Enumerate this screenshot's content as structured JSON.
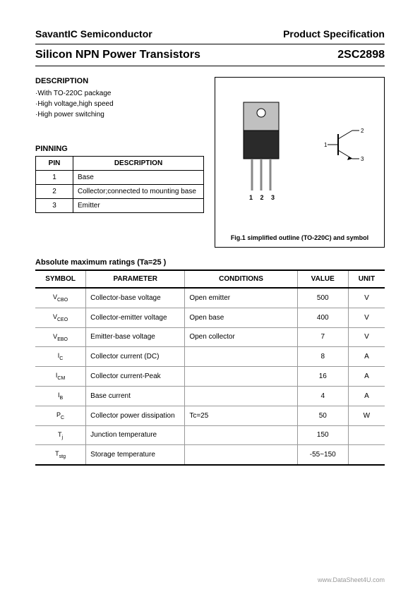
{
  "header": {
    "company": "SavantIC Semiconductor",
    "doc_type": "Product Specification"
  },
  "title": {
    "product_line": "Silicon NPN Power Transistors",
    "part_number": "2SC2898"
  },
  "description": {
    "heading": "DESCRIPTION",
    "items": [
      "·With TO-220C package",
      "·High voltage,high speed",
      "·High power switching"
    ]
  },
  "pinning": {
    "heading": "PINNING",
    "columns": [
      "PIN",
      "DESCRIPTION"
    ],
    "rows": [
      {
        "pin": "1",
        "desc": "Base"
      },
      {
        "pin": "2",
        "desc": "Collector;connected to mounting base"
      },
      {
        "pin": "3",
        "desc": "Emitter"
      }
    ]
  },
  "figure": {
    "caption": "Fig.1 simplified outline (TO-220C) and symbol",
    "pin_labels": "1 2 3",
    "symbol_pins": {
      "b": "1",
      "c": "2",
      "e": "3"
    }
  },
  "ratings": {
    "heading": "Absolute maximum ratings (Ta=25 )",
    "columns": [
      "SYMBOL",
      "PARAMETER",
      "CONDITIONS",
      "VALUE",
      "UNIT"
    ],
    "rows": [
      {
        "symbol": "V",
        "sub": "CBO",
        "param": "Collector-base voltage",
        "cond": "Open emitter",
        "value": "500",
        "unit": "V"
      },
      {
        "symbol": "V",
        "sub": "CEO",
        "param": "Collector-emitter voltage",
        "cond": "Open base",
        "value": "400",
        "unit": "V"
      },
      {
        "symbol": "V",
        "sub": "EBO",
        "param": "Emitter-base voltage",
        "cond": "Open collector",
        "value": "7",
        "unit": "V"
      },
      {
        "symbol": "I",
        "sub": "C",
        "param": "Collector current (DC)",
        "cond": "",
        "value": "8",
        "unit": "A"
      },
      {
        "symbol": "I",
        "sub": "CM",
        "param": "Collector current-Peak",
        "cond": "",
        "value": "16",
        "unit": "A"
      },
      {
        "symbol": "I",
        "sub": "B",
        "param": "Base current",
        "cond": "",
        "value": "4",
        "unit": "A"
      },
      {
        "symbol": "P",
        "sub": "C",
        "param": "Collector power dissipation",
        "cond": "Tc=25",
        "value": "50",
        "unit": "W"
      },
      {
        "symbol": "T",
        "sub": "j",
        "param": "Junction temperature",
        "cond": "",
        "value": "150",
        "unit": ""
      },
      {
        "symbol": "T",
        "sub": "stg",
        "param": "Storage temperature",
        "cond": "",
        "value": "-55~150",
        "unit": ""
      }
    ]
  },
  "footer": "www.DataSheet4U.com"
}
